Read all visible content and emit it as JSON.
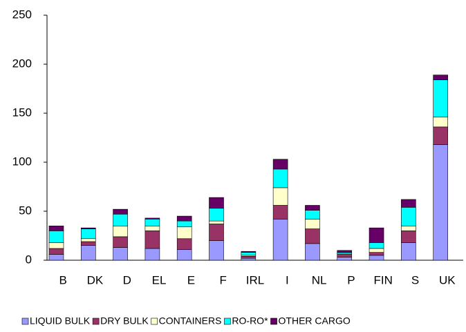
{
  "chart_data": {
    "type": "stacked_bar",
    "categories": [
      "B",
      "DK",
      "D",
      "EL",
      "E",
      "F",
      "IRL",
      "I",
      "NL",
      "P",
      "FIN",
      "S",
      "UK"
    ],
    "series": [
      {
        "name": "LIQUID BULK",
        "color": "#9999ff",
        "values": [
          6,
          15,
          13,
          12,
          11,
          20,
          2,
          42,
          17,
          3,
          5,
          18,
          118
        ]
      },
      {
        "name": "DRY BULK",
        "color": "#993366",
        "values": [
          6,
          4,
          11,
          18,
          11,
          17,
          2,
          14,
          15,
          3,
          3,
          12,
          18
        ]
      },
      {
        "name": "CONTAINERS",
        "color": "#ffffcc",
        "values": [
          6,
          3,
          11,
          5,
          12,
          3,
          1,
          18,
          10,
          1,
          4,
          5,
          10
        ]
      },
      {
        "name": "RO-RO*",
        "color": "#00ffff",
        "values": [
          12,
          10,
          12,
          7,
          6,
          13,
          3,
          19,
          9,
          1,
          6,
          19,
          38
        ]
      },
      {
        "name": "OTHER CARGO",
        "color": "#660066",
        "values": [
          5,
          1,
          5,
          1,
          5,
          11,
          1,
          10,
          5,
          2,
          15,
          8,
          5
        ]
      }
    ],
    "ylim": [
      0,
      250
    ],
    "yticks": [
      0,
      50,
      100,
      150,
      200,
      250
    ],
    "grid": false,
    "legend": "bottom"
  }
}
